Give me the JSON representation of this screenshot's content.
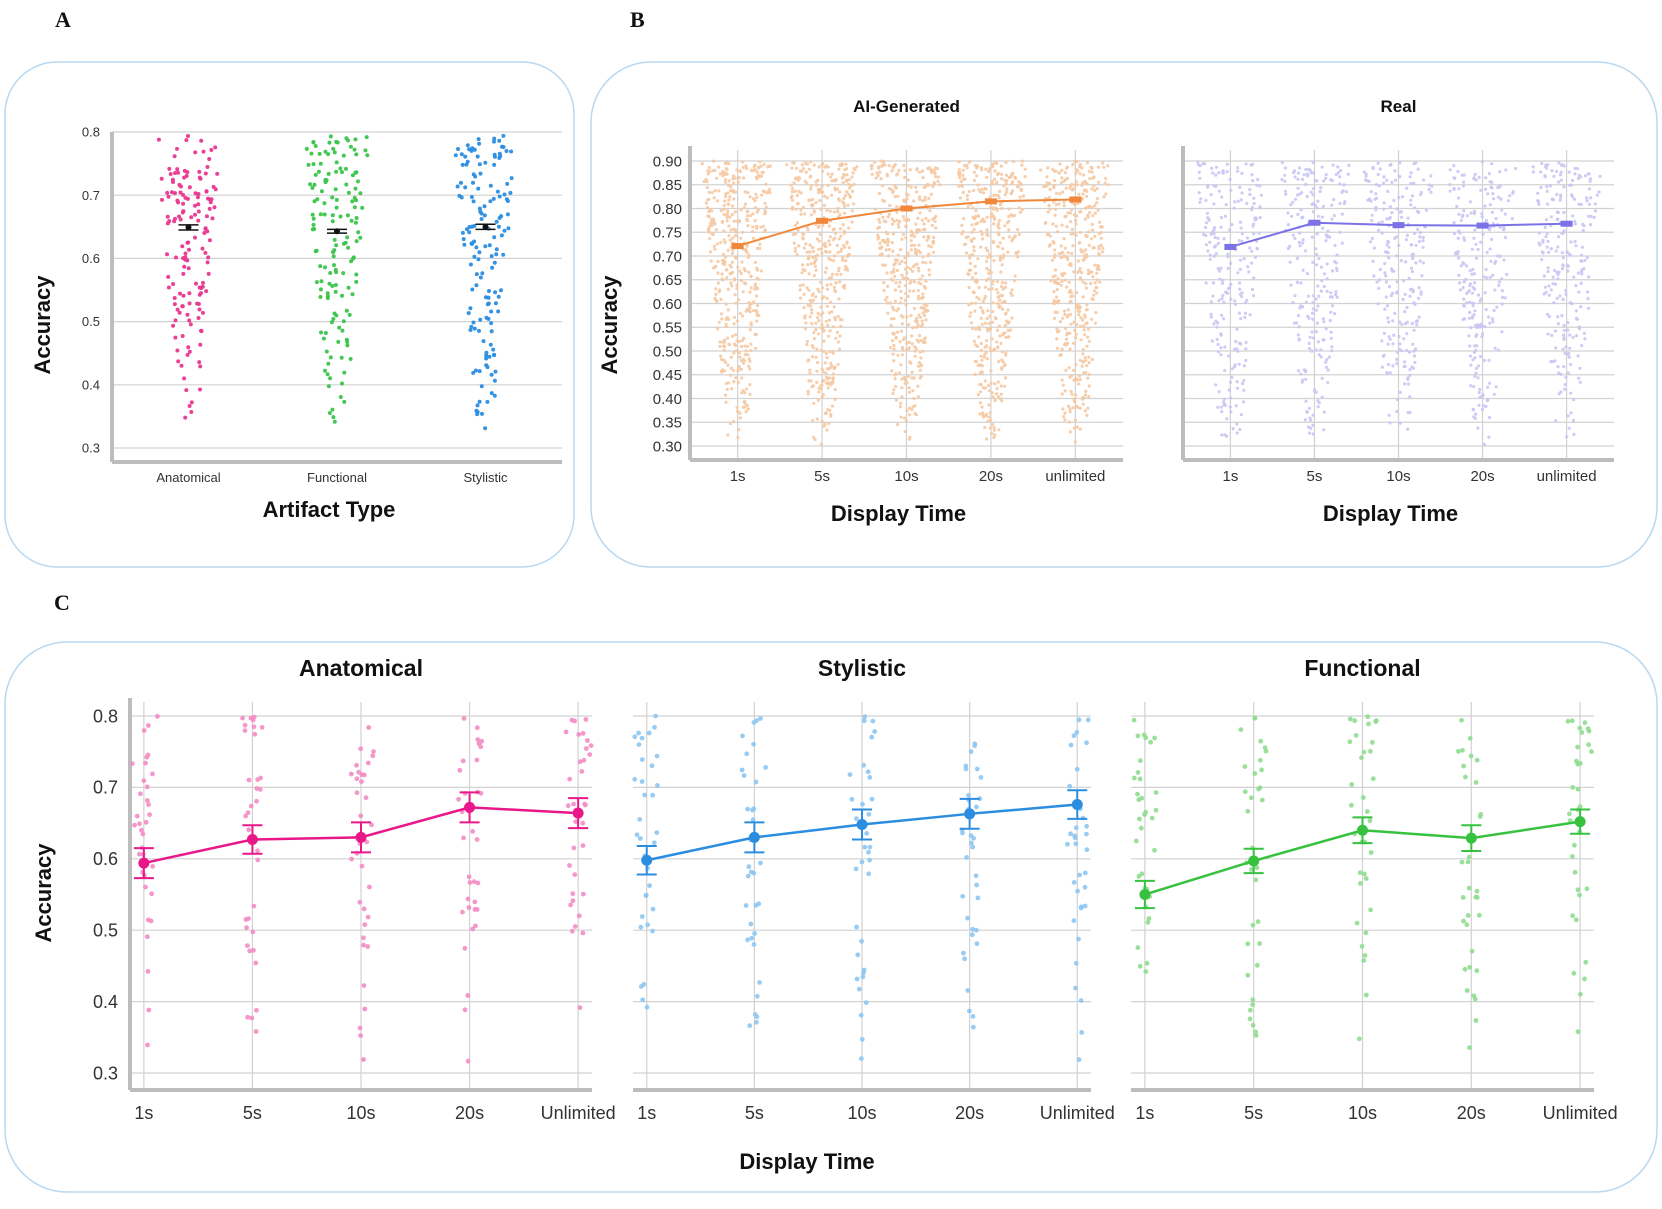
{
  "panel_letters": {
    "a": "A",
    "b": "B",
    "c": "C"
  },
  "chart_data": [
    {
      "id": "A",
      "type": "scatter",
      "title": "",
      "xlabel": "Artifact Type",
      "ylabel": "Accuracy",
      "categories": [
        "Anatomical",
        "Functional",
        "Stylistic"
      ],
      "ylim": [
        0.3,
        0.8
      ],
      "yticks": [
        "0.3",
        "0.4",
        "0.5",
        "0.6",
        "0.7",
        "0.8"
      ],
      "means": [
        0.649,
        0.643,
        0.65
      ],
      "errors": [
        0.004,
        0.003,
        0.004
      ],
      "colors": [
        "#e8388f",
        "#3bc44b",
        "#2a8de0"
      ],
      "grid": true
    },
    {
      "id": "B1",
      "type": "line",
      "title": "AI-Generated",
      "xlabel": "Display Time",
      "ylabel": "Accuracy",
      "categories": [
        "1s",
        "5s",
        "10s",
        "20s",
        "unlimited"
      ],
      "ylim": [
        0.3,
        0.9
      ],
      "yticks": [
        "0.30",
        "0.35",
        "0.40",
        "0.45",
        "0.50",
        "0.55",
        "0.60",
        "0.65",
        "0.70",
        "0.75",
        "0.80",
        "0.85",
        "0.90"
      ],
      "values": [
        0.721,
        0.774,
        0.8,
        0.815,
        0.819
      ],
      "errors": [
        0.004,
        0.003,
        0.003,
        0.003,
        0.003
      ],
      "color": "#f0873a",
      "grid": true
    },
    {
      "id": "B2",
      "type": "line",
      "title": "Real",
      "xlabel": "Display Time",
      "ylabel": "",
      "categories": [
        "1s",
        "5s",
        "10s",
        "20s",
        "unlimited"
      ],
      "ylim": [
        0.3,
        0.9
      ],
      "values": [
        0.719,
        0.77,
        0.765,
        0.764,
        0.768
      ],
      "errors": [
        0.004,
        0.003,
        0.003,
        0.003,
        0.003
      ],
      "color": "#7b72e6",
      "grid": true
    },
    {
      "id": "C1",
      "type": "line",
      "title": "Anatomical",
      "xlabel": "Display Time",
      "ylabel": "Accuracy",
      "categories": [
        "1s",
        "5s",
        "10s",
        "20s",
        "Unlimited"
      ],
      "ylim": [
        0.3,
        0.8
      ],
      "yticks": [
        "0.3",
        "0.4",
        "0.5",
        "0.6",
        "0.7",
        "0.8"
      ],
      "values": [
        0.594,
        0.627,
        0.63,
        0.672,
        0.664
      ],
      "errors": [
        0.021,
        0.02,
        0.021,
        0.021,
        0.021
      ],
      "color": "#e8188a",
      "grid": true
    },
    {
      "id": "C2",
      "type": "line",
      "title": "Stylistic",
      "xlabel": "",
      "ylabel": "",
      "categories": [
        "1s",
        "5s",
        "10s",
        "20s",
        "Unlimited"
      ],
      "ylim": [
        0.3,
        0.8
      ],
      "values": [
        0.598,
        0.63,
        0.648,
        0.663,
        0.676
      ],
      "errors": [
        0.02,
        0.021,
        0.021,
        0.021,
        0.02
      ],
      "color": "#2a8de0",
      "grid": true
    },
    {
      "id": "C3",
      "type": "line",
      "title": "Functional",
      "xlabel": "",
      "ylabel": "",
      "categories": [
        "1s",
        "5s",
        "10s",
        "20s",
        "Unlimited"
      ],
      "ylim": [
        0.3,
        0.8
      ],
      "values": [
        0.55,
        0.597,
        0.64,
        0.629,
        0.652
      ],
      "errors": [
        0.019,
        0.017,
        0.018,
        0.018,
        0.017
      ],
      "color": "#36c23f",
      "grid": true
    }
  ]
}
